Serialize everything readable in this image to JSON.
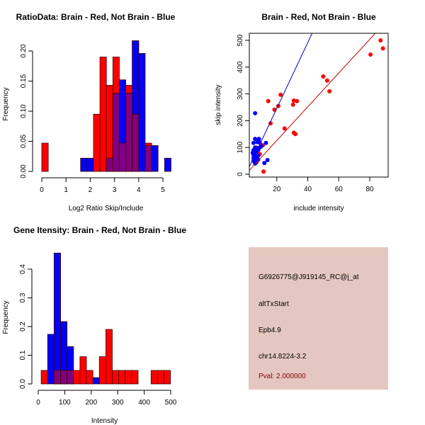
{
  "colors": {
    "red": "#ff0000",
    "blue": "#0000ff",
    "purple": "#800080",
    "panel": "#e4c7c0",
    "pval": "#8b0000"
  },
  "chart_data": [
    {
      "type": "bar",
      "title": "RatioData: Brain - Red, Not Brain - Blue",
      "xlabel": "Log2 Ratio Skip/Include",
      "ylabel": "Frequency",
      "xlim": [
        0,
        5.4
      ],
      "ylim": [
        0,
        0.22
      ],
      "xticks": [
        "0",
        "1",
        "2",
        "3",
        "4",
        "5"
      ],
      "yticks": [
        "0.00",
        "0.05",
        "0.10",
        "0.15",
        "0.20"
      ],
      "bin_start": 0,
      "bin_width": 0.2667,
      "series": [
        {
          "name": "Brain",
          "color": "red",
          "values": [
            0.047,
            0,
            0,
            0,
            0,
            0,
            0,
            0,
            0.095,
            0.19,
            0.143,
            0.19,
            0.047,
            0.143,
            0.095,
            0,
            0.047,
            0,
            0,
            0
          ]
        },
        {
          "name": "Not Brain",
          "color": "blue",
          "values": [
            0,
            0,
            0,
            0,
            0,
            0,
            0.022,
            0.022,
            0,
            0,
            0.022,
            0.13,
            0.152,
            0.13,
            0.217,
            0.196,
            0.043,
            0.043,
            0,
            0.022
          ]
        }
      ]
    },
    {
      "type": "scatter",
      "title": "Brain - Red, Not Brain - Blue",
      "xlabel": "include intensity",
      "ylabel": "skip intensity",
      "xlim": [
        1,
        91
      ],
      "ylim": [
        -5,
        520
      ],
      "xticks": [
        "20",
        "40",
        "60",
        "80"
      ],
      "yticks": [
        "0",
        "100",
        "200",
        "300",
        "400",
        "500"
      ],
      "series": [
        {
          "name": "Brain",
          "color": "red",
          "slope": 6.3,
          "points": [
            [
              87,
              500
            ],
            [
              88.5,
              470
            ],
            [
              80.5,
              447
            ],
            [
              50,
              365
            ],
            [
              52.5,
              350
            ],
            [
              54,
              310
            ],
            [
              31,
              275
            ],
            [
              33,
              273
            ],
            [
              30.5,
              260
            ],
            [
              22.5,
              297
            ],
            [
              14.5,
              273
            ],
            [
              21,
              255
            ],
            [
              18.5,
              241
            ],
            [
              16,
              190
            ],
            [
              25,
              171
            ],
            [
              31,
              155
            ],
            [
              32,
              150
            ],
            [
              11.5,
              10
            ],
            [
              11,
              108
            ],
            [
              9,
              75
            ],
            [
              7,
              100
            ],
            [
              7,
              45
            ]
          ]
        },
        {
          "name": "Not Brain",
          "color": "blue",
          "slope": 12.3,
          "points": [
            [
              6,
              228
            ],
            [
              6,
              132
            ],
            [
              8.5,
              132
            ],
            [
              5,
              117
            ],
            [
              7.5,
              120
            ],
            [
              9,
              118
            ],
            [
              13,
              117
            ],
            [
              12,
              42
            ],
            [
              14,
              53
            ],
            [
              5,
              90
            ],
            [
              5.5,
              85
            ],
            [
              6,
              80
            ],
            [
              6.5,
              75
            ],
            [
              5,
              70
            ],
            [
              5.5,
              65
            ],
            [
              6,
              60
            ],
            [
              6.5,
              55
            ],
            [
              7,
              50
            ],
            [
              5,
              50
            ],
            [
              6,
              45
            ],
            [
              7,
              95
            ],
            [
              8,
              90
            ],
            [
              8,
              70
            ],
            [
              9,
              100
            ],
            [
              10,
              105
            ],
            [
              6,
              100
            ],
            [
              7,
              85
            ],
            [
              7.5,
              65
            ],
            [
              8,
              55
            ],
            [
              5,
              60
            ],
            [
              4.5,
              80
            ],
            [
              6,
              40
            ]
          ]
        }
      ]
    },
    {
      "type": "bar",
      "title": "Gene Itensity: Brain - Red, Not Brain - Blue",
      "xlabel": "Intensity",
      "ylabel": "Frequency",
      "xlim": [
        0,
        520
      ],
      "ylim": [
        0,
        0.46
      ],
      "xticks": [
        "0",
        "100",
        "200",
        "300",
        "400",
        "500"
      ],
      "yticks": [
        "0.0",
        "0.1",
        "0.2",
        "0.3",
        "0.4"
      ],
      "bin_start": 11,
      "bin_width": 24.4,
      "series": [
        {
          "name": "Brain",
          "color": "red",
          "values": [
            0.047,
            0,
            0.047,
            0.047,
            0.047,
            0.047,
            0.095,
            0.047,
            0,
            0.095,
            0.19,
            0.047,
            0.047,
            0.047,
            0.047,
            0,
            0,
            0.047,
            0.047,
            0.047
          ]
        },
        {
          "name": "Not Brain",
          "color": "blue",
          "values": [
            0,
            0.173,
            0.456,
            0.217,
            0.13,
            0,
            0,
            0,
            0.022,
            0,
            0,
            0,
            0,
            0,
            0,
            0,
            0,
            0,
            0,
            0
          ]
        }
      ]
    }
  ],
  "info_panel": {
    "probe": "G6926775@J919145_RC@j_at",
    "event_type": "altTxStart",
    "gene": "Epb4.9",
    "location": "chr14.8224-3.2",
    "pval": "Pval: 2.000000"
  }
}
